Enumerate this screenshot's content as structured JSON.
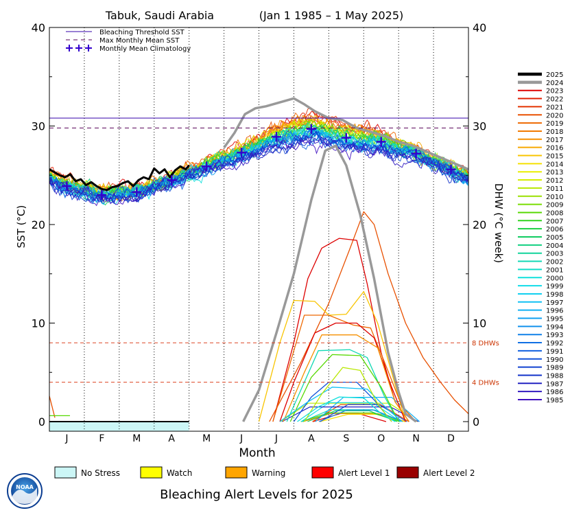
{
  "chart_data": {
    "type": "line",
    "title": "Tabuk, Saudi Arabia",
    "date_range": "(Jan 1 1985 – 1 May 2025)",
    "xlabel": "Month",
    "ylabel_left": "SST (°C)",
    "ylabel_right": "DHW (°C week)",
    "months": [
      "J",
      "F",
      "M",
      "A",
      "M",
      "J",
      "J",
      "A",
      "S",
      "O",
      "N",
      "D"
    ],
    "ylim": [
      0,
      40
    ],
    "yticks": [
      0,
      10,
      20,
      30,
      40
    ],
    "grid": "dotted vertical month separators",
    "reference_lines": {
      "bleaching_threshold_sst": 30.8,
      "max_monthly_mean_sst": 29.8,
      "dhw_8": 8,
      "dhw_4": 4
    },
    "dhw_level_labels": [
      "8 DHWs",
      "4 DHWs"
    ],
    "sst_legend": [
      "Bleaching Threshold SST",
      "Max Monthly Mean SST",
      "Monthly Mean Climatology"
    ],
    "climatology": [
      {
        "x": 0.5,
        "y": 23.9
      },
      {
        "x": 1.5,
        "y": 23.0
      },
      {
        "x": 2.5,
        "y": 23.3
      },
      {
        "x": 3.5,
        "y": 24.5
      },
      {
        "x": 4.5,
        "y": 25.9
      },
      {
        "x": 5.5,
        "y": 27.3
      },
      {
        "x": 6.5,
        "y": 28.9
      },
      {
        "x": 7.5,
        "y": 29.7
      },
      {
        "x": 8.5,
        "y": 28.8
      },
      {
        "x": 9.5,
        "y": 28.4
      },
      {
        "x": 10.5,
        "y": 27.2
      },
      {
        "x": 11.5,
        "y": 25.6
      }
    ],
    "year_legend": [
      {
        "year": "2025",
        "color": "#000000"
      },
      {
        "year": "2024",
        "color": "#999999"
      },
      {
        "year": "2023",
        "color": "#dd0000"
      },
      {
        "year": "2022",
        "color": "#e01e00"
      },
      {
        "year": "2021",
        "color": "#e33300"
      },
      {
        "year": "2020",
        "color": "#e85000"
      },
      {
        "year": "2019",
        "color": "#ee6800"
      },
      {
        "year": "2018",
        "color": "#f27a00"
      },
      {
        "year": "2017",
        "color": "#f59000"
      },
      {
        "year": "2016",
        "color": "#f8a800"
      },
      {
        "year": "2015",
        "color": "#f8c400"
      },
      {
        "year": "2014",
        "color": "#f5e000"
      },
      {
        "year": "2013",
        "color": "#e8ee00"
      },
      {
        "year": "2012",
        "color": "#d4ee00"
      },
      {
        "year": "2011",
        "color": "#b8e800"
      },
      {
        "year": "2010",
        "color": "#9ae000"
      },
      {
        "year": "2009",
        "color": "#78dc00"
      },
      {
        "year": "2008",
        "color": "#55d800"
      },
      {
        "year": "2007",
        "color": "#30d420"
      },
      {
        "year": "2006",
        "color": "#18d040"
      },
      {
        "year": "2005",
        "color": "#10cc60"
      },
      {
        "year": "2004",
        "color": "#10d080"
      },
      {
        "year": "2003",
        "color": "#10d49a"
      },
      {
        "year": "2002",
        "color": "#10d8b4"
      },
      {
        "year": "2001",
        "color": "#10dcc8"
      },
      {
        "year": "2000",
        "color": "#10e0dc"
      },
      {
        "year": "1999",
        "color": "#10dce8"
      },
      {
        "year": "1998",
        "color": "#10d0f0"
      },
      {
        "year": "1997",
        "color": "#10c0f4"
      },
      {
        "year": "1996",
        "color": "#10b0f4"
      },
      {
        "year": "1995",
        "color": "#10a0f0"
      },
      {
        "year": "1994",
        "color": "#1090ec"
      },
      {
        "year": "1993",
        "color": "#1080e8"
      },
      {
        "year": "1992",
        "color": "#1070e4"
      },
      {
        "year": "1991",
        "color": "#1060e0"
      },
      {
        "year": "1990",
        "color": "#1050d8"
      },
      {
        "year": "1989",
        "color": "#1040d0"
      },
      {
        "year": "1988",
        "color": "#1030c8"
      },
      {
        "year": "1987",
        "color": "#2020c0"
      },
      {
        "year": "1986",
        "color": "#3018c0"
      },
      {
        "year": "1985",
        "color": "#4010c0"
      }
    ],
    "series_2025_sst": [
      {
        "x": 0.0,
        "y": 25.6
      },
      {
        "x": 0.15,
        "y": 25.3
      },
      {
        "x": 0.3,
        "y": 25.0
      },
      {
        "x": 0.45,
        "y": 24.8
      },
      {
        "x": 0.6,
        "y": 25.1
      },
      {
        "x": 0.75,
        "y": 24.4
      },
      {
        "x": 0.9,
        "y": 24.6
      },
      {
        "x": 1.05,
        "y": 24.0
      },
      {
        "x": 1.2,
        "y": 24.3
      },
      {
        "x": 1.35,
        "y": 23.9
      },
      {
        "x": 1.5,
        "y": 23.6
      },
      {
        "x": 1.65,
        "y": 23.5
      },
      {
        "x": 1.8,
        "y": 23.8
      },
      {
        "x": 1.95,
        "y": 23.9
      },
      {
        "x": 2.1,
        "y": 24.2
      },
      {
        "x": 2.25,
        "y": 24.4
      },
      {
        "x": 2.4,
        "y": 23.9
      },
      {
        "x": 2.55,
        "y": 24.5
      },
      {
        "x": 2.7,
        "y": 24.8
      },
      {
        "x": 2.85,
        "y": 24.6
      },
      {
        "x": 3.0,
        "y": 25.7
      },
      {
        "x": 3.15,
        "y": 25.2
      },
      {
        "x": 3.3,
        "y": 25.6
      },
      {
        "x": 3.45,
        "y": 24.8
      },
      {
        "x": 3.6,
        "y": 25.5
      },
      {
        "x": 3.75,
        "y": 25.9
      },
      {
        "x": 3.9,
        "y": 25.6
      },
      {
        "x": 4.0,
        "y": 26.0
      }
    ],
    "series_2024_sst": [
      {
        "x": 5.0,
        "y": 27.8
      },
      {
        "x": 5.3,
        "y": 29.3
      },
      {
        "x": 5.6,
        "y": 31.2
      },
      {
        "x": 5.9,
        "y": 31.8
      },
      {
        "x": 6.2,
        "y": 32.0
      },
      {
        "x": 6.6,
        "y": 32.4
      },
      {
        "x": 7.0,
        "y": 32.8
      },
      {
        "x": 7.3,
        "y": 32.2
      },
      {
        "x": 7.6,
        "y": 31.5
      },
      {
        "x": 8.0,
        "y": 30.8
      },
      {
        "x": 8.4,
        "y": 30.6
      },
      {
        "x": 8.8,
        "y": 29.8
      },
      {
        "x": 9.2,
        "y": 29.4
      },
      {
        "x": 9.6,
        "y": 29.0
      },
      {
        "x": 10.0,
        "y": 28.4
      },
      {
        "x": 10.4,
        "y": 28.0
      },
      {
        "x": 10.8,
        "y": 27.4
      },
      {
        "x": 11.2,
        "y": 26.8
      },
      {
        "x": 11.6,
        "y": 26.2
      },
      {
        "x": 12.0,
        "y": 25.6
      }
    ],
    "series_2024_dhw": [
      {
        "x": 5.55,
        "y": 0
      },
      {
        "x": 6.0,
        "y": 3.2
      },
      {
        "x": 6.5,
        "y": 9.0
      },
      {
        "x": 7.0,
        "y": 15.0
      },
      {
        "x": 7.5,
        "y": 22.5
      },
      {
        "x": 7.9,
        "y": 27.5
      },
      {
        "x": 8.2,
        "y": 28.0
      },
      {
        "x": 8.5,
        "y": 26.0
      },
      {
        "x": 8.9,
        "y": 21.0
      },
      {
        "x": 9.3,
        "y": 14.5
      },
      {
        "x": 9.7,
        "y": 7.0
      },
      {
        "x": 10.0,
        "y": 3.0
      },
      {
        "x": 10.2,
        "y": 0.8
      },
      {
        "x": 10.5,
        "y": 0
      }
    ],
    "dhw_highlights": [
      {
        "color": "#e85000",
        "points": [
          {
            "x": 6.3,
            "y": 0
          },
          {
            "x": 7.2,
            "y": 6.0
          },
          {
            "x": 8.0,
            "y": 12.0
          },
          {
            "x": 8.6,
            "y": 17.5
          },
          {
            "x": 9.0,
            "y": 21.3
          },
          {
            "x": 9.3,
            "y": 20.0
          },
          {
            "x": 9.7,
            "y": 15.0
          },
          {
            "x": 10.2,
            "y": 10.0
          },
          {
            "x": 10.7,
            "y": 6.5
          },
          {
            "x": 11.2,
            "y": 4.0
          },
          {
            "x": 11.6,
            "y": 2.2
          },
          {
            "x": 12.0,
            "y": 0.8
          }
        ]
      },
      {
        "color": "#dd0000",
        "points": [
          {
            "x": 6.4,
            "y": 0
          },
          {
            "x": 7.0,
            "y": 8.0
          },
          {
            "x": 7.4,
            "y": 14.5
          },
          {
            "x": 7.8,
            "y": 17.6
          },
          {
            "x": 8.3,
            "y": 18.6
          },
          {
            "x": 8.8,
            "y": 18.4
          },
          {
            "x": 9.1,
            "y": 14.0
          },
          {
            "x": 9.5,
            "y": 7.0
          },
          {
            "x": 9.9,
            "y": 2.0
          },
          {
            "x": 10.3,
            "y": 0
          }
        ]
      },
      {
        "color": "#f8c400",
        "points": [
          {
            "x": 6.0,
            "y": 0
          },
          {
            "x": 6.6,
            "y": 8.0
          },
          {
            "x": 7.0,
            "y": 12.3
          },
          {
            "x": 7.6,
            "y": 12.2
          },
          {
            "x": 8.0,
            "y": 10.8
          },
          {
            "x": 8.5,
            "y": 10.9
          },
          {
            "x": 9.0,
            "y": 13.2
          },
          {
            "x": 9.4,
            "y": 10.0
          },
          {
            "x": 9.8,
            "y": 5.0
          },
          {
            "x": 10.2,
            "y": 0
          }
        ]
      },
      {
        "color": "#ee6800",
        "points": [
          {
            "x": 6.4,
            "y": 0
          },
          {
            "x": 6.9,
            "y": 6.0
          },
          {
            "x": 7.3,
            "y": 10.8
          },
          {
            "x": 8.0,
            "y": 10.8
          },
          {
            "x": 8.7,
            "y": 9.8
          },
          {
            "x": 9.2,
            "y": 9.5
          },
          {
            "x": 9.6,
            "y": 6.0
          },
          {
            "x": 10.1,
            "y": 1.5
          },
          {
            "x": 10.5,
            "y": 0
          }
        ]
      },
      {
        "color": "#dd0000",
        "points": [
          {
            "x": 6.6,
            "y": 0
          },
          {
            "x": 7.0,
            "y": 4.0
          },
          {
            "x": 7.6,
            "y": 9.0
          },
          {
            "x": 8.2,
            "y": 10.0
          },
          {
            "x": 8.8,
            "y": 10.0
          },
          {
            "x": 9.3,
            "y": 8.5
          },
          {
            "x": 9.8,
            "y": 3.5
          },
          {
            "x": 10.2,
            "y": 0
          }
        ]
      },
      {
        "color": "#f59000",
        "points": [
          {
            "x": 6.7,
            "y": 0
          },
          {
            "x": 7.3,
            "y": 5.0
          },
          {
            "x": 7.8,
            "y": 8.8
          },
          {
            "x": 8.8,
            "y": 8.8
          },
          {
            "x": 9.4,
            "y": 7.5
          },
          {
            "x": 9.9,
            "y": 2.0
          },
          {
            "x": 10.3,
            "y": 0
          }
        ]
      },
      {
        "color": "#10d8b4",
        "points": [
          {
            "x": 6.8,
            "y": 0
          },
          {
            "x": 7.3,
            "y": 4.0
          },
          {
            "x": 7.7,
            "y": 7.2
          },
          {
            "x": 8.6,
            "y": 7.3
          },
          {
            "x": 9.1,
            "y": 6.5
          },
          {
            "x": 9.6,
            "y": 2.5
          },
          {
            "x": 10.0,
            "y": 0
          }
        ]
      },
      {
        "color": "#55d800",
        "points": [
          {
            "x": 6.9,
            "y": 0
          },
          {
            "x": 7.5,
            "y": 4.5
          },
          {
            "x": 8.1,
            "y": 6.8
          },
          {
            "x": 8.9,
            "y": 6.7
          },
          {
            "x": 9.5,
            "y": 3.5
          },
          {
            "x": 10.0,
            "y": 0
          }
        ]
      },
      {
        "color": "#1050d8",
        "points": [
          {
            "x": 7.0,
            "y": 0
          },
          {
            "x": 7.5,
            "y": 2.5
          },
          {
            "x": 8.0,
            "y": 4.0
          },
          {
            "x": 8.8,
            "y": 4.0
          },
          {
            "x": 9.3,
            "y": 2.2
          },
          {
            "x": 9.8,
            "y": 0
          }
        ]
      },
      {
        "color": "#10c0f4",
        "points": [
          {
            "x": 6.6,
            "y": 0
          },
          {
            "x": 7.4,
            "y": 2.0
          },
          {
            "x": 8.1,
            "y": 3.5
          },
          {
            "x": 9.1,
            "y": 3.3
          },
          {
            "x": 9.7,
            "y": 1.2
          },
          {
            "x": 10.1,
            "y": 0
          }
        ]
      },
      {
        "color": "#b8e800",
        "points": [
          {
            "x": 7.3,
            "y": 0
          },
          {
            "x": 7.8,
            "y": 2.8
          },
          {
            "x": 8.4,
            "y": 5.5
          },
          {
            "x": 8.9,
            "y": 5.2
          },
          {
            "x": 9.4,
            "y": 1.8
          },
          {
            "x": 9.8,
            "y": 0
          }
        ]
      },
      {
        "color": "#10e0dc",
        "points": [
          {
            "x": 7.1,
            "y": 0
          },
          {
            "x": 7.7,
            "y": 1.5
          },
          {
            "x": 8.3,
            "y": 2.5
          },
          {
            "x": 9.0,
            "y": 2.4
          },
          {
            "x": 9.5,
            "y": 0.8
          },
          {
            "x": 9.9,
            "y": 0
          }
        ]
      }
    ],
    "alert_strip": {
      "filled_through_month": 4,
      "color": "#ccf6f6"
    },
    "alert_legend": [
      {
        "label": "No Stress",
        "color": "#ccf6f6"
      },
      {
        "label": "Watch",
        "color": "#ffff00"
      },
      {
        "label": "Warning",
        "color": "#ffa500"
      },
      {
        "label": "Alert Level 1",
        "color": "#ff0000"
      },
      {
        "label": "Alert Level 2",
        "color": "#990000"
      }
    ],
    "alert_caption": "Bleaching Alert Levels for 2025",
    "colors": {
      "threshold": "#3300aa",
      "mmm": "#550055",
      "climatology": "#3300cc",
      "dhw_ref": "#dd4422",
      "dhw_ref_text": "#cc3300"
    }
  },
  "logo": {
    "text": "NOAA"
  }
}
